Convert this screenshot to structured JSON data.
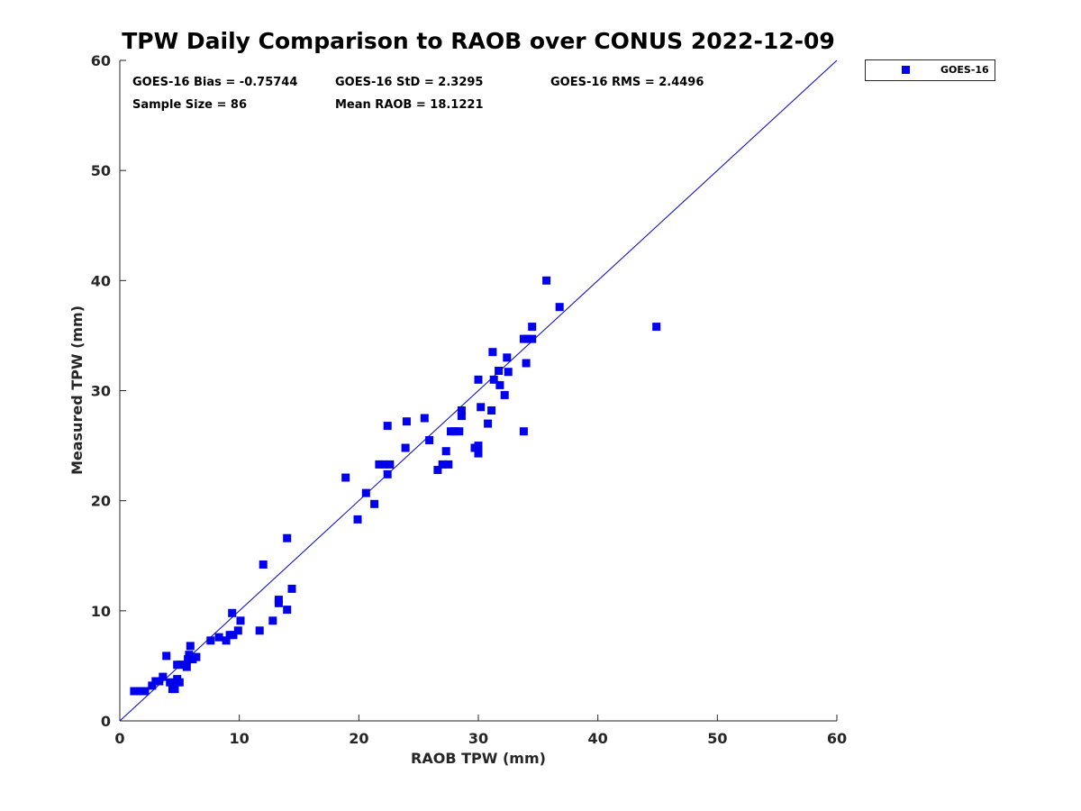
{
  "chart_data": {
    "type": "scatter",
    "title": "TPW Daily Comparison to RAOB over CONUS 2022-12-09",
    "xlabel": "RAOB TPW (mm)",
    "ylabel": "Measured TPW (mm)",
    "xlim": [
      0,
      60
    ],
    "ylim": [
      0,
      60
    ],
    "xticks": [
      "0",
      "10",
      "20",
      "30",
      "40",
      "50",
      "60"
    ],
    "yticks": [
      "0",
      "10",
      "20",
      "30",
      "40",
      "50",
      "60"
    ],
    "grid": false,
    "legend_position": "outside-top-right",
    "reference_line": "1:1 line",
    "colors": {
      "series": "#0000ee",
      "reference_line": "#0000cc",
      "axis": "#262626"
    },
    "annotations": {
      "bias": "GOES-16 Bias = -0.75744",
      "std": "GOES-16 StD = 2.3295",
      "rms": "GOES-16 RMS = 2.4496",
      "sample_size": "Sample Size = 86",
      "mean_raob": "Mean RAOB = 18.1221"
    },
    "series": [
      {
        "name": "GOES-16",
        "marker": "square",
        "points": [
          [
            1.2,
            2.7
          ],
          [
            1.5,
            2.7
          ],
          [
            2.1,
            2.7
          ],
          [
            2.7,
            3.2
          ],
          [
            3.0,
            3.6
          ],
          [
            3.3,
            3.6
          ],
          [
            3.6,
            4.0
          ],
          [
            3.9,
            5.9
          ],
          [
            4.2,
            3.5
          ],
          [
            4.4,
            2.9
          ],
          [
            4.5,
            3.2
          ],
          [
            4.6,
            2.9
          ],
          [
            4.8,
            3.8
          ],
          [
            4.8,
            5.1
          ],
          [
            5.0,
            3.5
          ],
          [
            5.1,
            5.1
          ],
          [
            5.5,
            5.1
          ],
          [
            5.6,
            4.9
          ],
          [
            5.7,
            5.6
          ],
          [
            5.8,
            6.0
          ],
          [
            5.9,
            6.8
          ],
          [
            6.1,
            5.6
          ],
          [
            6.4,
            5.8
          ],
          [
            7.6,
            7.3
          ],
          [
            8.3,
            7.6
          ],
          [
            8.9,
            7.3
          ],
          [
            9.2,
            7.8
          ],
          [
            9.4,
            9.8
          ],
          [
            9.5,
            7.8
          ],
          [
            9.9,
            8.2
          ],
          [
            10.1,
            9.1
          ],
          [
            11.7,
            8.2
          ],
          [
            12.0,
            14.2
          ],
          [
            12.8,
            9.1
          ],
          [
            13.3,
            10.7
          ],
          [
            13.3,
            11.0
          ],
          [
            14.0,
            10.1
          ],
          [
            14.0,
            16.6
          ],
          [
            14.4,
            12.0
          ],
          [
            18.9,
            22.1
          ],
          [
            19.9,
            18.3
          ],
          [
            20.6,
            20.7
          ],
          [
            21.3,
            19.7
          ],
          [
            21.7,
            23.3
          ],
          [
            22.1,
            23.3
          ],
          [
            22.4,
            22.4
          ],
          [
            22.4,
            26.8
          ],
          [
            22.6,
            23.3
          ],
          [
            23.9,
            24.8
          ],
          [
            24.0,
            27.2
          ],
          [
            25.5,
            27.5
          ],
          [
            25.9,
            25.5
          ],
          [
            26.6,
            22.8
          ],
          [
            27.0,
            23.3
          ],
          [
            27.3,
            24.5
          ],
          [
            27.5,
            23.3
          ],
          [
            27.7,
            26.3
          ],
          [
            28.0,
            26.3
          ],
          [
            28.4,
            26.3
          ],
          [
            28.6,
            27.7
          ],
          [
            28.6,
            28.2
          ],
          [
            29.7,
            24.8
          ],
          [
            30.0,
            24.3
          ],
          [
            30.0,
            25.0
          ],
          [
            30.0,
            31.0
          ],
          [
            30.2,
            28.5
          ],
          [
            30.8,
            27.0
          ],
          [
            31.1,
            28.2
          ],
          [
            31.2,
            33.5
          ],
          [
            31.3,
            31.0
          ],
          [
            31.7,
            31.8
          ],
          [
            31.8,
            30.5
          ],
          [
            32.2,
            29.6
          ],
          [
            32.4,
            33.0
          ],
          [
            32.5,
            31.7
          ],
          [
            33.8,
            26.3
          ],
          [
            33.8,
            34.7
          ],
          [
            34.0,
            32.5
          ],
          [
            34.1,
            34.7
          ],
          [
            34.5,
            34.7
          ],
          [
            34.5,
            35.8
          ],
          [
            35.7,
            40.0
          ],
          [
            36.8,
            37.6
          ],
          [
            44.9,
            35.8
          ]
        ]
      }
    ]
  }
}
